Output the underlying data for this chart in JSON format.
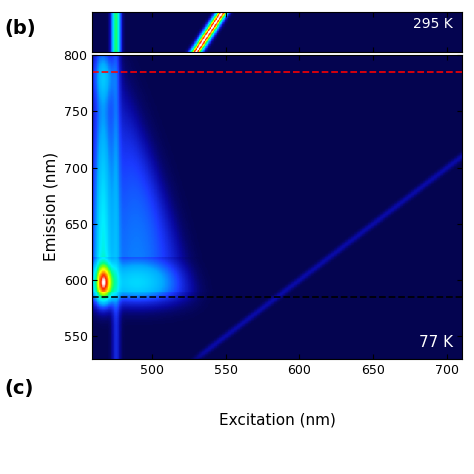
{
  "title_top": "295 K",
  "title_bottom": "77 K",
  "label_b": "(b)",
  "label_c": "(c)",
  "xlabel": "Excitation (nm)",
  "ylabel": "Emission (nm)",
  "excitation_range": [
    460,
    710
  ],
  "emission_range_main": [
    530,
    800
  ],
  "red_dashed_y": 785,
  "black_dashed_y": 585,
  "background_color": "#050560",
  "figsize": [
    4.74,
    4.74
  ],
  "dpi": 100,
  "xticks": [
    500,
    550,
    600,
    650,
    700
  ],
  "yticks": [
    550,
    600,
    650,
    700,
    750,
    800
  ]
}
